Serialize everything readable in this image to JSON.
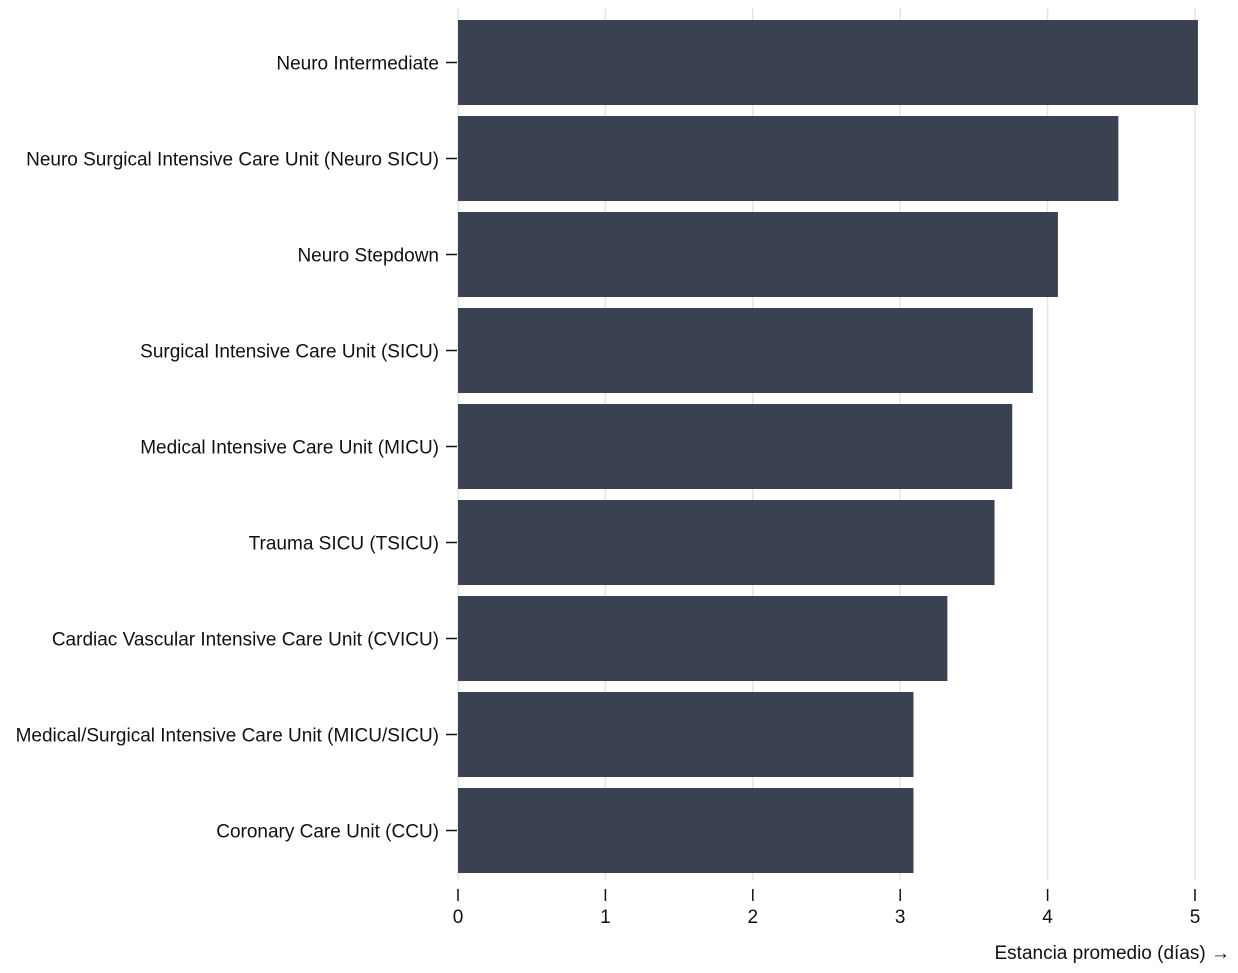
{
  "chart_data": {
    "type": "bar",
    "orientation": "horizontal",
    "categories": [
      "Neuro Intermediate",
      "Neuro Surgical Intensive Care Unit (Neuro SICU)",
      "Neuro Stepdown",
      "Surgical Intensive Care Unit (SICU)",
      "Medical Intensive Care Unit (MICU)",
      "Trauma SICU (TSICU)",
      "Cardiac Vascular Intensive Care Unit (CVICU)",
      "Medical/Surgical Intensive Care Unit (MICU/SICU)",
      "Coronary Care Unit (CCU)"
    ],
    "values": [
      5.02,
      4.48,
      4.07,
      3.9,
      3.76,
      3.64,
      3.32,
      3.09,
      3.09
    ],
    "title": "",
    "xlabel": "Estancia promedio (días) →",
    "ylabel": "",
    "xlim": [
      0,
      5
    ],
    "xticks": [
      "0",
      "1",
      "2",
      "3",
      "4",
      "5"
    ],
    "grid": "vertical",
    "bar_color": "#3a4150",
    "grid_color": "#e5e5e5",
    "text_color": "#111111",
    "legend": "none"
  }
}
